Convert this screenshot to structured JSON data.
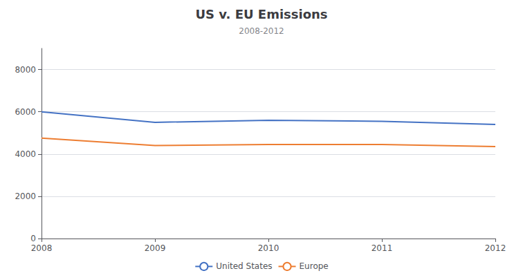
{
  "chart_data": {
    "type": "line",
    "title": "US v. EU Emissions",
    "subtitle": "2008-2012",
    "x": [
      2008,
      2009,
      2010,
      2011,
      2012
    ],
    "series": [
      {
        "name": "United States",
        "color": "#4472C4",
        "values": [
          6000,
          5500,
          5600,
          5550,
          5400
        ]
      },
      {
        "name": "Europe",
        "color": "#ED7D31",
        "values": [
          4750,
          4400,
          4450,
          4450,
          4350
        ]
      }
    ],
    "xlim": [
      2008,
      2012
    ],
    "xticks": [
      2008,
      2009,
      2010,
      2011,
      2012
    ],
    "ylim": [
      0,
      9000
    ],
    "yticks": [
      0,
      2000,
      4000,
      6000,
      8000
    ],
    "grid": true,
    "legend": "bottom"
  }
}
